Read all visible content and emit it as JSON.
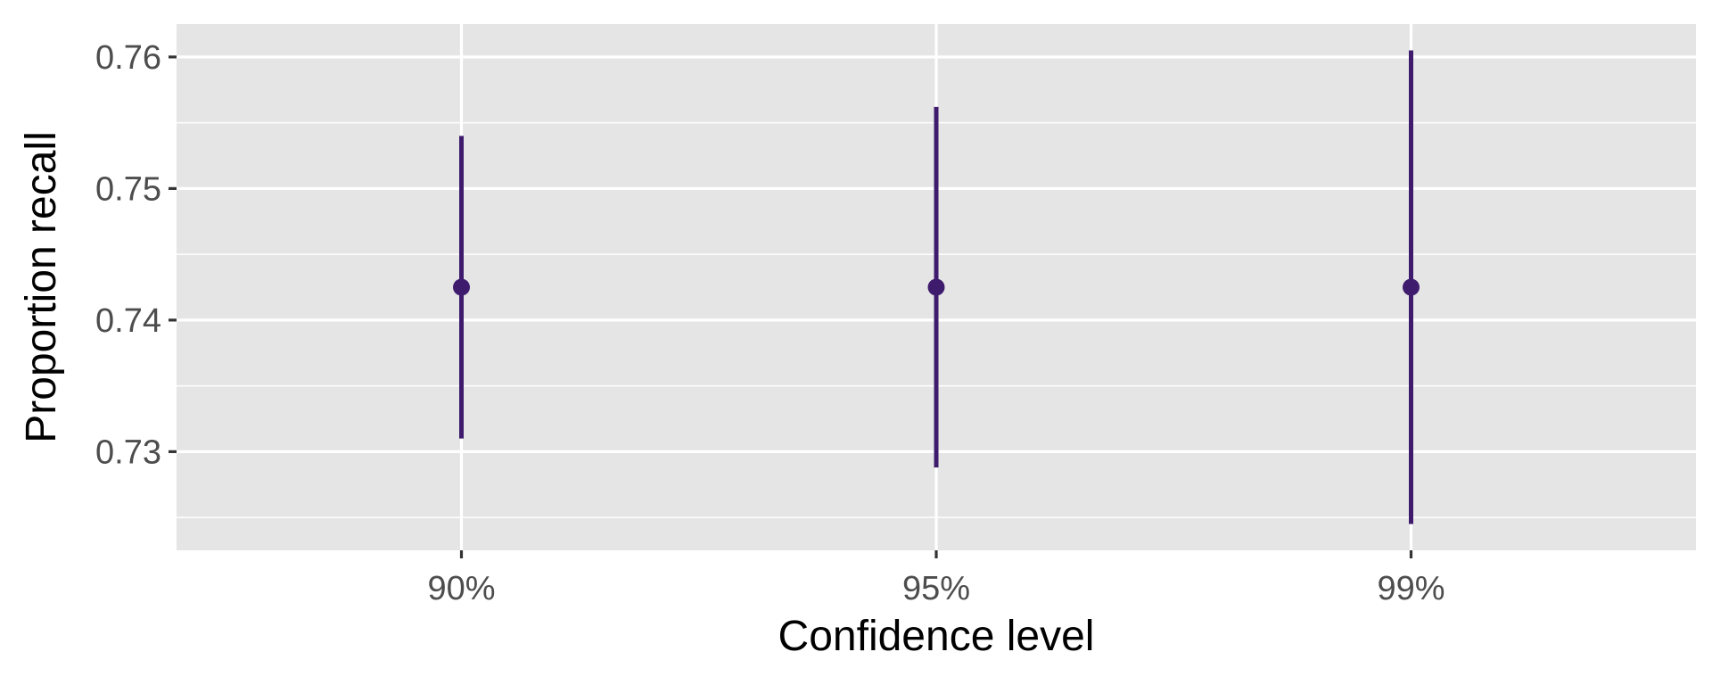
{
  "chart_data": {
    "type": "errorbar",
    "xlabel": "Confidence level",
    "ylabel": "Proportion recall",
    "categories": [
      "90%",
      "95%",
      "99%"
    ],
    "series": [
      {
        "estimate": [
          0.7425,
          0.7425,
          0.7425
        ],
        "lower": [
          0.731,
          0.7288,
          0.7245
        ],
        "upper": [
          0.754,
          0.7562,
          0.7605
        ]
      }
    ],
    "yticks": [
      0.73,
      0.74,
      0.75,
      0.76
    ],
    "ytick_labels": [
      "0.73",
      "0.74",
      "0.75",
      "0.76"
    ],
    "ylim": [
      0.7225,
      0.7625
    ],
    "grid": true,
    "colors": {
      "marker": "#3f1b6e",
      "panel_background": "#e5e5e5",
      "gridline": "#ffffff"
    }
  }
}
